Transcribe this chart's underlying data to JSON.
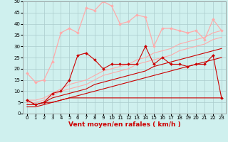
{
  "x": [
    0,
    1,
    2,
    3,
    4,
    5,
    6,
    7,
    8,
    9,
    10,
    11,
    12,
    13,
    14,
    15,
    16,
    17,
    18,
    19,
    20,
    21,
    22,
    23
  ],
  "series": [
    {
      "label": "flat_dark",
      "color": "#cc0000",
      "lw": 0.8,
      "marker": null,
      "y": [
        6,
        4,
        5,
        5,
        6,
        7,
        7,
        7,
        7,
        7,
        7,
        7,
        7,
        7,
        7,
        7,
        7,
        7,
        7,
        7,
        7,
        7,
        7,
        7
      ]
    },
    {
      "label": "trend1_dark",
      "color": "#cc0000",
      "lw": 0.8,
      "marker": null,
      "y": [
        3,
        3,
        4,
        5,
        6,
        7,
        8,
        9,
        10,
        11,
        12,
        13,
        14,
        15,
        16,
        17,
        18,
        19,
        20,
        21,
        22,
        23,
        24,
        25
      ]
    },
    {
      "label": "trend2_dark",
      "color": "#cc0000",
      "lw": 0.8,
      "marker": null,
      "y": [
        4,
        4,
        5,
        7,
        8,
        9,
        10,
        11,
        13,
        14,
        15,
        16,
        17,
        18,
        19,
        21,
        22,
        23,
        24,
        25,
        26,
        27,
        28,
        29
      ]
    },
    {
      "label": "trend3_pink",
      "color": "#ffaaaa",
      "lw": 0.8,
      "marker": null,
      "y": [
        5,
        5,
        6,
        8,
        10,
        11,
        12,
        13,
        15,
        17,
        18,
        19,
        20,
        22,
        23,
        24,
        25,
        26,
        28,
        29,
        30,
        31,
        33,
        34
      ]
    },
    {
      "label": "trend4_pink",
      "color": "#ffaaaa",
      "lw": 0.8,
      "marker": null,
      "y": [
        6,
        6,
        7,
        9,
        11,
        13,
        14,
        15,
        17,
        19,
        20,
        21,
        22,
        24,
        25,
        27,
        28,
        29,
        31,
        32,
        33,
        34,
        36,
        37
      ]
    },
    {
      "label": "markers_dark_red",
      "color": "#cc0000",
      "lw": 0.8,
      "marker": "D",
      "markersize": 2.0,
      "y": [
        6,
        4,
        5,
        9,
        10,
        15,
        26,
        27,
        24,
        20,
        22,
        22,
        22,
        22,
        30,
        22,
        25,
        22,
        22,
        21,
        22,
        22,
        26,
        7
      ]
    },
    {
      "label": "markers_pink",
      "color": "#ffaaaa",
      "lw": 0.9,
      "marker": "D",
      "markersize": 2.0,
      "y": [
        18,
        14,
        15,
        23,
        36,
        38,
        36,
        47,
        46,
        50,
        48,
        40,
        41,
        44,
        43,
        30,
        38,
        38,
        37,
        36,
        37,
        33,
        42,
        37
      ]
    }
  ],
  "xlabel": "Vent moyen/en rafales ( km/h )",
  "xlim": [
    -0.5,
    23.5
  ],
  "ylim": [
    0,
    50
  ],
  "yticks": [
    0,
    5,
    10,
    15,
    20,
    25,
    30,
    35,
    40,
    45,
    50
  ],
  "xticks": [
    0,
    1,
    2,
    3,
    4,
    5,
    6,
    7,
    8,
    9,
    10,
    11,
    12,
    13,
    14,
    15,
    16,
    17,
    18,
    19,
    20,
    21,
    22,
    23
  ],
  "bg_color": "#cff0ee",
  "grid_color": "#aacccc",
  "xlabel_fontsize": 6.5,
  "tick_fontsize": 5.0
}
